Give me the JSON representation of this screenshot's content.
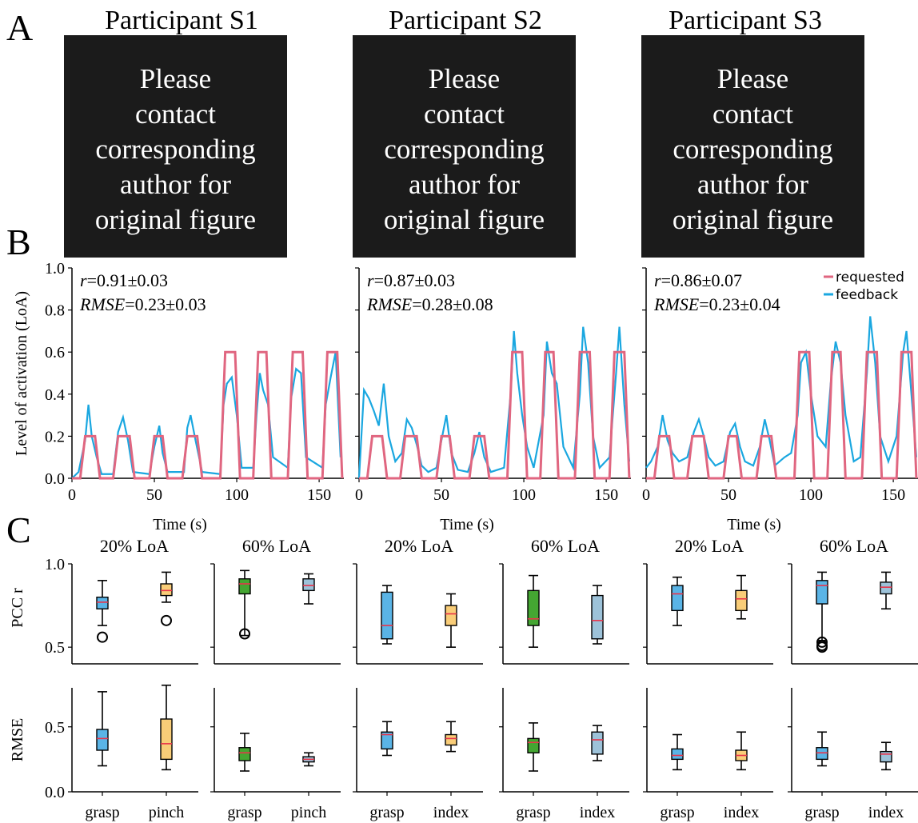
{
  "panels": {
    "A": "A",
    "B": "B",
    "C": "C"
  },
  "participants": [
    "Participant S1",
    "Participant S2",
    "Participant S3"
  ],
  "placeholder_lines": [
    "Please",
    "contact",
    "corresponding",
    "author for",
    "original figure"
  ],
  "colors": {
    "requested": "#e06680",
    "feedback": "#1aa7e0",
    "grasp_box": "#5ab4e6",
    "pinch_box": "#f9cd78",
    "grasp60_box": "#44a632",
    "index_box": "#9dc2d9",
    "median": "#e8334a",
    "placeholder_bg": "#1b1b1b"
  },
  "panelB": {
    "ylabel": "Level of activation (LoA)",
    "xlabel": "Time (s)",
    "legend": [
      "requested",
      "feedback"
    ],
    "stats": [
      {
        "r": "=0.91±0.03",
        "rmse": "=0.23±0.03"
      },
      {
        "r": "=0.87±0.03",
        "rmse": "=0.28±0.08"
      },
      {
        "r": "=0.86±0.07",
        "rmse": "=0.23±0.04"
      }
    ],
    "r_label": "r",
    "rmse_label": "RMSE",
    "yticks": [
      "0.0",
      "0.2",
      "0.4",
      "0.6",
      "0.8",
      "1.0"
    ],
    "xticks": [
      "0",
      "50",
      "100",
      "150"
    ]
  },
  "panelC": {
    "titles": [
      "20% LoA",
      "60% LoA",
      "20% LoA",
      "60% LoA",
      "20% LoA",
      "60% LoA"
    ],
    "ylabel_top": "PCC r",
    "ylabel_bottom": "RMSE",
    "yticks_top": [
      "1.0",
      "0.5"
    ],
    "yticks_bottom": [
      "0.5",
      "0.0"
    ],
    "xlabels": [
      [
        "grasp",
        "pinch"
      ],
      [
        "grasp",
        "pinch"
      ],
      [
        "grasp",
        "index"
      ],
      [
        "grasp",
        "index"
      ],
      [
        "grasp",
        "index"
      ],
      [
        "grasp",
        "index"
      ]
    ]
  },
  "chart_data": [
    {
      "type": "line",
      "title": "Participant S1",
      "xlabel": "Time (s)",
      "ylabel": "Level of activation (LoA)",
      "xlim": [
        0,
        165
      ],
      "ylim": [
        0,
        1.0
      ],
      "series": [
        {
          "name": "requested",
          "x": [
            0,
            5,
            8,
            14,
            17,
            25,
            28,
            35,
            38,
            47,
            50,
            55,
            58,
            67,
            70,
            76,
            79,
            90,
            93,
            99,
            102,
            110,
            113,
            118,
            121,
            131,
            134,
            140,
            143,
            152,
            155,
            161,
            164
          ],
          "y": [
            0,
            0,
            0.2,
            0.2,
            0,
            0,
            0.2,
            0.2,
            0,
            0,
            0.2,
            0.2,
            0,
            0,
            0.2,
            0.2,
            0,
            0,
            0.6,
            0.6,
            0,
            0,
            0.6,
            0.6,
            0,
            0,
            0.6,
            0.6,
            0,
            0,
            0.6,
            0.6,
            0
          ]
        },
        {
          "name": "feedback",
          "x": [
            0,
            4,
            8,
            10,
            12,
            15,
            18,
            25,
            28,
            31,
            34,
            37,
            47,
            50,
            53,
            55,
            58,
            68,
            70,
            72,
            75,
            79,
            90,
            92,
            94,
            97,
            100,
            103,
            110,
            112,
            114,
            116,
            119,
            122,
            131,
            133,
            136,
            139,
            142,
            152,
            154,
            157,
            160,
            163
          ],
          "y": [
            0,
            0.03,
            0.18,
            0.35,
            0.2,
            0.1,
            0.02,
            0.02,
            0.22,
            0.29,
            0.18,
            0.03,
            0.02,
            0.15,
            0.25,
            0.12,
            0.03,
            0.03,
            0.24,
            0.3,
            0.18,
            0.03,
            0.02,
            0.35,
            0.45,
            0.48,
            0.3,
            0.05,
            0.05,
            0.3,
            0.5,
            0.42,
            0.35,
            0.1,
            0.05,
            0.38,
            0.52,
            0.5,
            0.1,
            0.05,
            0.35,
            0.48,
            0.6,
            0.1
          ]
        }
      ],
      "annotations": [
        "r=0.91±0.03",
        "RMSE=0.23±0.03"
      ]
    },
    {
      "type": "line",
      "title": "Participant S2",
      "xlabel": "Time (s)",
      "xlim": [
        0,
        165
      ],
      "ylim": [
        0,
        1.0
      ],
      "series": [
        {
          "name": "requested",
          "x": [
            0,
            5,
            8,
            14,
            17,
            25,
            28,
            35,
            38,
            47,
            50,
            55,
            58,
            67,
            70,
            76,
            79,
            90,
            93,
            99,
            102,
            110,
            113,
            118,
            121,
            131,
            134,
            140,
            143,
            152,
            155,
            161,
            164
          ],
          "y": [
            0,
            0,
            0.2,
            0.2,
            0,
            0,
            0.2,
            0.2,
            0,
            0,
            0.2,
            0.2,
            0,
            0,
            0.2,
            0.2,
            0,
            0,
            0.6,
            0.6,
            0,
            0,
            0.6,
            0.6,
            0,
            0,
            0.6,
            0.6,
            0,
            0,
            0.6,
            0.6,
            0
          ]
        },
        {
          "name": "feedback",
          "x": [
            0,
            3,
            6,
            9,
            12,
            15,
            18,
            22,
            26,
            29,
            32,
            35,
            38,
            42,
            47,
            50,
            53,
            56,
            60,
            66,
            70,
            73,
            76,
            80,
            88,
            92,
            94,
            96,
            99,
            102,
            106,
            112,
            114,
            117,
            120,
            124,
            130,
            134,
            136,
            139,
            142,
            146,
            152,
            156,
            158,
            161,
            164
          ],
          "y": [
            0,
            0.42,
            0.38,
            0.32,
            0.25,
            0.45,
            0.2,
            0.08,
            0.12,
            0.28,
            0.24,
            0.16,
            0.06,
            0.03,
            0.05,
            0.18,
            0.3,
            0.12,
            0.04,
            0.03,
            0.12,
            0.22,
            0.1,
            0.03,
            0.05,
            0.4,
            0.7,
            0.5,
            0.3,
            0.15,
            0.05,
            0.3,
            0.65,
            0.5,
            0.45,
            0.15,
            0.05,
            0.4,
            0.72,
            0.55,
            0.2,
            0.05,
            0.1,
            0.5,
            0.72,
            0.35,
            0.08
          ]
        }
      ],
      "annotations": [
        "r=0.87±0.03",
        "RMSE=0.28±0.08"
      ]
    },
    {
      "type": "line",
      "title": "Participant S3",
      "xlabel": "Time (s)",
      "xlim": [
        0,
        165
      ],
      "ylim": [
        0,
        1.0
      ],
      "series": [
        {
          "name": "requested",
          "x": [
            0,
            5,
            8,
            14,
            17,
            25,
            28,
            35,
            38,
            47,
            50,
            55,
            58,
            67,
            70,
            76,
            79,
            90,
            93,
            99,
            102,
            110,
            113,
            118,
            121,
            131,
            134,
            140,
            143,
            152,
            155,
            161,
            164
          ],
          "y": [
            0,
            0,
            0.2,
            0.2,
            0,
            0,
            0.2,
            0.2,
            0,
            0,
            0.2,
            0.2,
            0,
            0,
            0.2,
            0.2,
            0,
            0,
            0.6,
            0.6,
            0,
            0,
            0.6,
            0.6,
            0,
            0,
            0.6,
            0.6,
            0,
            0,
            0.6,
            0.6,
            0
          ]
        },
        {
          "name": "feedback",
          "x": [
            0,
            3,
            7,
            10,
            13,
            16,
            20,
            25,
            29,
            32,
            35,
            38,
            42,
            47,
            51,
            54,
            57,
            60,
            65,
            69,
            72,
            75,
            78,
            84,
            88,
            92,
            94,
            97,
            100,
            104,
            109,
            112,
            115,
            118,
            121,
            126,
            130,
            134,
            136,
            139,
            142,
            147,
            152,
            156,
            158,
            161,
            164
          ],
          "y": [
            0.05,
            0.08,
            0.15,
            0.3,
            0.18,
            0.12,
            0.08,
            0.1,
            0.22,
            0.28,
            0.2,
            0.1,
            0.06,
            0.08,
            0.22,
            0.26,
            0.15,
            0.08,
            0.06,
            0.15,
            0.28,
            0.18,
            0.06,
            0.1,
            0.12,
            0.3,
            0.55,
            0.6,
            0.4,
            0.2,
            0.15,
            0.45,
            0.65,
            0.55,
            0.3,
            0.08,
            0.1,
            0.5,
            0.77,
            0.55,
            0.2,
            0.08,
            0.2,
            0.6,
            0.7,
            0.4,
            0.1
          ]
        }
      ],
      "annotations": [
        "r=0.86±0.07",
        "RMSE=0.23±0.04"
      ]
    },
    {
      "type": "box",
      "metric": "PCC r",
      "ylim": [
        0.4,
        1.0
      ],
      "groups": [
        {
          "title": "20% LoA",
          "participant": "S1",
          "boxes": [
            {
              "label": "grasp",
              "min": 0.63,
              "q1": 0.73,
              "median": 0.77,
              "q3": 0.8,
              "max": 0.9,
              "outliers": [
                0.56
              ]
            },
            {
              "label": "pinch",
              "min": 0.77,
              "q1": 0.81,
              "median": 0.84,
              "q3": 0.88,
              "max": 0.95,
              "outliers": [
                0.66
              ]
            }
          ]
        },
        {
          "title": "60% LoA",
          "participant": "S1",
          "boxes": [
            {
              "label": "grasp",
              "min": 0.57,
              "q1": 0.82,
              "median": 0.88,
              "q3": 0.91,
              "max": 0.96,
              "outliers": [
                0.58
              ]
            },
            {
              "label": "pinch",
              "min": 0.76,
              "q1": 0.84,
              "median": 0.87,
              "q3": 0.91,
              "max": 0.94,
              "outliers": []
            }
          ]
        },
        {
          "title": "20% LoA",
          "participant": "S2",
          "boxes": [
            {
              "label": "grasp",
              "min": 0.52,
              "q1": 0.55,
              "median": 0.63,
              "q3": 0.83,
              "max": 0.87,
              "outliers": []
            },
            {
              "label": "index",
              "min": 0.5,
              "q1": 0.63,
              "median": 0.7,
              "q3": 0.75,
              "max": 0.82,
              "outliers": []
            }
          ]
        },
        {
          "title": "60% LoA",
          "participant": "S2",
          "boxes": [
            {
              "label": "grasp",
              "min": 0.5,
              "q1": 0.63,
              "median": 0.67,
              "q3": 0.84,
              "max": 0.93,
              "outliers": []
            },
            {
              "label": "index",
              "min": 0.52,
              "q1": 0.55,
              "median": 0.66,
              "q3": 0.81,
              "max": 0.87,
              "outliers": []
            }
          ]
        },
        {
          "title": "20% LoA",
          "participant": "S3",
          "boxes": [
            {
              "label": "grasp",
              "min": 0.63,
              "q1": 0.72,
              "median": 0.82,
              "q3": 0.87,
              "max": 0.92,
              "outliers": []
            },
            {
              "label": "index",
              "min": 0.67,
              "q1": 0.72,
              "median": 0.79,
              "q3": 0.84,
              "max": 0.93,
              "outliers": []
            }
          ]
        },
        {
          "title": "60% LoA",
          "participant": "S3",
          "boxes": [
            {
              "label": "grasp",
              "min": 0.54,
              "q1": 0.76,
              "median": 0.87,
              "q3": 0.9,
              "max": 0.95,
              "outliers": [
                0.53,
                0.51,
                0.5
              ]
            },
            {
              "label": "index",
              "min": 0.73,
              "q1": 0.82,
              "median": 0.86,
              "q3": 0.89,
              "max": 0.95,
              "outliers": []
            }
          ]
        }
      ]
    },
    {
      "type": "box",
      "metric": "RMSE",
      "ylim": [
        0.0,
        0.8
      ],
      "groups": [
        {
          "title": "20% LoA",
          "participant": "S1",
          "boxes": [
            {
              "label": "grasp",
              "min": 0.2,
              "q1": 0.32,
              "median": 0.41,
              "q3": 0.48,
              "max": 0.77,
              "outliers": []
            },
            {
              "label": "pinch",
              "min": 0.17,
              "q1": 0.25,
              "median": 0.37,
              "q3": 0.56,
              "max": 0.82,
              "outliers": []
            }
          ]
        },
        {
          "title": "60% LoA",
          "participant": "S1",
          "boxes": [
            {
              "label": "grasp",
              "min": 0.16,
              "q1": 0.24,
              "median": 0.3,
              "q3": 0.34,
              "max": 0.45,
              "outliers": []
            },
            {
              "label": "pinch",
              "min": 0.2,
              "q1": 0.23,
              "median": 0.25,
              "q3": 0.27,
              "max": 0.3,
              "outliers": []
            }
          ]
        },
        {
          "title": "20% LoA",
          "participant": "S2",
          "boxes": [
            {
              "label": "grasp",
              "min": 0.28,
              "q1": 0.33,
              "median": 0.44,
              "q3": 0.46,
              "max": 0.54,
              "outliers": []
            },
            {
              "label": "index",
              "min": 0.31,
              "q1": 0.36,
              "median": 0.41,
              "q3": 0.44,
              "max": 0.54,
              "outliers": []
            }
          ]
        },
        {
          "title": "60% LoA",
          "participant": "S2",
          "boxes": [
            {
              "label": "grasp",
              "min": 0.16,
              "q1": 0.3,
              "median": 0.38,
              "q3": 0.41,
              "max": 0.53,
              "outliers": []
            },
            {
              "label": "index",
              "min": 0.24,
              "q1": 0.29,
              "median": 0.4,
              "q3": 0.46,
              "max": 0.51,
              "outliers": []
            }
          ]
        },
        {
          "title": "20% LoA",
          "participant": "S3",
          "boxes": [
            {
              "label": "grasp",
              "min": 0.17,
              "q1": 0.25,
              "median": 0.28,
              "q3": 0.33,
              "max": 0.44,
              "outliers": []
            },
            {
              "label": "index",
              "min": 0.17,
              "q1": 0.24,
              "median": 0.28,
              "q3": 0.32,
              "max": 0.46,
              "outliers": []
            }
          ]
        },
        {
          "title": "60% LoA",
          "participant": "S3",
          "boxes": [
            {
              "label": "grasp",
              "min": 0.2,
              "q1": 0.25,
              "median": 0.3,
              "q3": 0.34,
              "max": 0.46,
              "outliers": []
            },
            {
              "label": "index",
              "min": 0.17,
              "q1": 0.23,
              "median": 0.29,
              "q3": 0.31,
              "max": 0.38,
              "outliers": []
            }
          ]
        }
      ]
    }
  ]
}
